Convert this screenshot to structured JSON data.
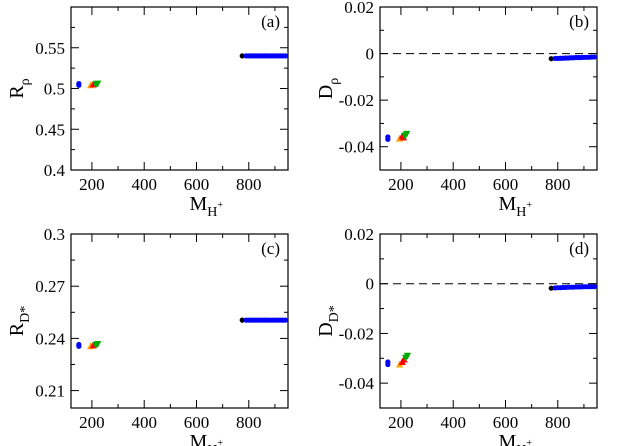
{
  "colors": {
    "black": "#000000",
    "blue": "#0000ff",
    "red": "#ff0000",
    "green": "#00aa00",
    "orange": "#ffa500"
  },
  "chart_data": [
    {
      "id": "a",
      "type": "scatter",
      "panel_label": "(a)",
      "xlabel_main": "M",
      "xlabel_sub": "H",
      "xlabel_sup": "+",
      "ylabel_main": "R",
      "ylabel_sub": "ρ",
      "xlim": [
        120,
        950
      ],
      "ylim": [
        0.4,
        0.6
      ],
      "xticks": [
        200,
        400,
        600,
        800
      ],
      "xtick_labels": [
        "200",
        "400",
        "600",
        "800"
      ],
      "yticks": [
        0.4,
        0.45,
        0.5,
        0.55,
        0.6
      ],
      "ytick_labels": [
        "0.4",
        "0.45",
        "0.5",
        "0.55",
        ""
      ],
      "reference_line": null,
      "series": [
        {
          "color": "black",
          "marker": "circle",
          "points": [
            [
              775,
              0.54
            ]
          ]
        },
        {
          "color": "blue",
          "marker": "circle",
          "points": [
            [
              150,
              0.504
            ],
            [
              150,
              0.506
            ],
            [
              790,
              0.54
            ],
            [
              800,
              0.54
            ],
            [
              810,
              0.54
            ],
            [
              820,
              0.54
            ],
            [
              830,
              0.54
            ],
            [
              840,
              0.54
            ],
            [
              850,
              0.54
            ],
            [
              860,
              0.54
            ],
            [
              870,
              0.54
            ],
            [
              880,
              0.54
            ],
            [
              890,
              0.54
            ],
            [
              900,
              0.54
            ],
            [
              910,
              0.54
            ],
            [
              920,
              0.54
            ],
            [
              930,
              0.54
            ],
            [
              940,
              0.54
            ]
          ]
        },
        {
          "color": "orange",
          "marker": "triangle-up",
          "points": [
            [
              195,
              0.504
            ]
          ]
        },
        {
          "color": "red",
          "marker": "triangle-up",
          "points": [
            [
              205,
              0.505
            ]
          ]
        },
        {
          "color": "green",
          "marker": "triangle-down",
          "points": [
            [
              215,
              0.505
            ],
            [
              222,
              0.506
            ]
          ]
        }
      ]
    },
    {
      "id": "b",
      "type": "scatter",
      "panel_label": "(b)",
      "xlabel_main": "M",
      "xlabel_sub": "H",
      "xlabel_sup": "+",
      "ylabel_main": "D",
      "ylabel_sub": "ρ",
      "xlim": [
        120,
        950
      ],
      "ylim": [
        -0.05,
        0.02
      ],
      "xticks": [
        200,
        400,
        600,
        800
      ],
      "xtick_labels": [
        "200",
        "400",
        "600",
        "800"
      ],
      "yticks": [
        -0.04,
        -0.02,
        0,
        0.02
      ],
      "ytick_labels": [
        "-0.04",
        "-0.02",
        "0",
        "0.02"
      ],
      "reference_line": 0,
      "series": [
        {
          "color": "black",
          "marker": "circle",
          "points": [
            [
              775,
              -0.0022
            ]
          ]
        },
        {
          "color": "blue",
          "marker": "circle",
          "points": [
            [
              150,
              -0.0358
            ],
            [
              150,
              -0.0368
            ],
            [
              790,
              -0.0021
            ],
            [
              800,
              -0.0021
            ],
            [
              810,
              -0.002
            ],
            [
              820,
              -0.002
            ],
            [
              830,
              -0.0019
            ],
            [
              840,
              -0.0019
            ],
            [
              850,
              -0.0018
            ],
            [
              860,
              -0.0018
            ],
            [
              870,
              -0.0017
            ],
            [
              880,
              -0.0017
            ],
            [
              890,
              -0.0017
            ],
            [
              900,
              -0.0016
            ],
            [
              910,
              -0.0016
            ],
            [
              920,
              -0.0016
            ],
            [
              930,
              -0.0015
            ],
            [
              940,
              -0.0015
            ]
          ]
        },
        {
          "color": "orange",
          "marker": "triangle-up",
          "points": [
            [
              195,
              -0.0365
            ]
          ]
        },
        {
          "color": "red",
          "marker": "triangle-up",
          "points": [
            [
              205,
              -0.0355
            ],
            [
              210,
              -0.036
            ]
          ]
        },
        {
          "color": "green",
          "marker": "triangle-down",
          "points": [
            [
              215,
              -0.0352
            ],
            [
              222,
              -0.0345
            ]
          ]
        }
      ]
    },
    {
      "id": "c",
      "type": "scatter",
      "panel_label": "(c)",
      "xlabel_main": "M",
      "xlabel_sub": "H",
      "xlabel_sup": "+",
      "ylabel_main": "R",
      "ylabel_sub": "D*",
      "xlim": [
        120,
        950
      ],
      "ylim": [
        0.2,
        0.3
      ],
      "xticks": [
        200,
        400,
        600,
        800
      ],
      "xtick_labels": [
        "200",
        "400",
        "600",
        "800"
      ],
      "yticks": [
        0.21,
        0.24,
        0.27,
        0.3
      ],
      "ytick_labels": [
        "0.21",
        "0.24",
        "0.27",
        "0.3"
      ],
      "reference_line": null,
      "series": [
        {
          "color": "black",
          "marker": "circle",
          "points": [
            [
              775,
              0.2505
            ]
          ]
        },
        {
          "color": "blue",
          "marker": "circle",
          "points": [
            [
              150,
              0.2355
            ],
            [
              150,
              0.2365
            ],
            [
              790,
              0.2505
            ],
            [
              800,
              0.2505
            ],
            [
              810,
              0.2505
            ],
            [
              820,
              0.2505
            ],
            [
              830,
              0.2505
            ],
            [
              840,
              0.2505
            ],
            [
              850,
              0.2505
            ],
            [
              860,
              0.2505
            ],
            [
              870,
              0.2505
            ],
            [
              880,
              0.2505
            ],
            [
              890,
              0.2505
            ],
            [
              900,
              0.2505
            ],
            [
              910,
              0.2505
            ],
            [
              920,
              0.2505
            ],
            [
              930,
              0.2505
            ],
            [
              940,
              0.2505
            ]
          ]
        },
        {
          "color": "orange",
          "marker": "triangle-up",
          "points": [
            [
              195,
              0.2355
            ]
          ]
        },
        {
          "color": "red",
          "marker": "triangle-up",
          "points": [
            [
              205,
              0.236
            ]
          ]
        },
        {
          "color": "green",
          "marker": "triangle-down",
          "points": [
            [
              215,
              0.2362
            ],
            [
              222,
              0.2368
            ]
          ]
        }
      ]
    },
    {
      "id": "d",
      "type": "scatter",
      "panel_label": "(d)",
      "xlabel_main": "M",
      "xlabel_sub": "H",
      "xlabel_sup": "+",
      "ylabel_main": "D",
      "ylabel_sub": "D*",
      "xlim": [
        120,
        950
      ],
      "ylim": [
        -0.05,
        0.02
      ],
      "xticks": [
        200,
        400,
        600,
        800
      ],
      "xtick_labels": [
        "200",
        "400",
        "600",
        "800"
      ],
      "yticks": [
        -0.04,
        -0.02,
        0,
        0.02
      ],
      "ytick_labels": [
        "-0.04",
        "-0.02",
        "0",
        "0.02"
      ],
      "reference_line": 0,
      "series": [
        {
          "color": "black",
          "marker": "circle",
          "points": [
            [
              775,
              -0.0018
            ]
          ]
        },
        {
          "color": "blue",
          "marker": "circle",
          "points": [
            [
              150,
              -0.0315
            ],
            [
              150,
              -0.0325
            ],
            [
              790,
              -0.0017
            ],
            [
              800,
              -0.0016
            ],
            [
              810,
              -0.0016
            ],
            [
              820,
              -0.0015
            ],
            [
              830,
              -0.0015
            ],
            [
              840,
              -0.0014
            ],
            [
              850,
              -0.0014
            ],
            [
              860,
              -0.0014
            ],
            [
              870,
              -0.0013
            ],
            [
              880,
              -0.0013
            ],
            [
              890,
              -0.0013
            ],
            [
              900,
              -0.0012
            ],
            [
              910,
              -0.0012
            ],
            [
              920,
              -0.0012
            ],
            [
              930,
              -0.0012
            ],
            [
              940,
              -0.0012
            ]
          ]
        },
        {
          "color": "orange",
          "marker": "triangle-up",
          "points": [
            [
              195,
              -0.0325
            ]
          ]
        },
        {
          "color": "red",
          "marker": "triangle-up",
          "points": [
            [
              205,
              -0.0315
            ],
            [
              212,
              -0.0305
            ]
          ]
        },
        {
          "color": "green",
          "marker": "triangle-down",
          "points": [
            [
              218,
              -0.0298
            ],
            [
              225,
              -0.029
            ]
          ]
        }
      ]
    }
  ]
}
